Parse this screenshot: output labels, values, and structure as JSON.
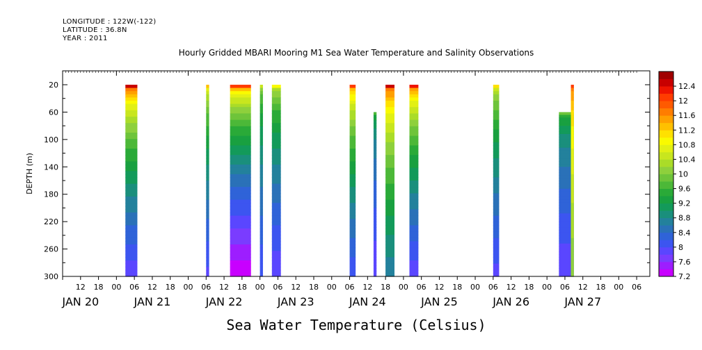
{
  "header": {
    "longitude": "LONGITUDE : 122W(-122)",
    "latitude": "LATITUDE : 36.8N",
    "year": "YEAR : 2011"
  },
  "chart_data": {
    "type": "heatmap",
    "title": "Hourly Gridded MBARI Mooring M1 Sea Water Temperature and Salinity Observations",
    "xlabel": "Sea Water Temperature (Celsius)",
    "ylabel": "DEPTH (m)",
    "x_range_hours": [
      0,
      192
    ],
    "ylim": [
      300,
      10
    ],
    "y_ticks": [
      20,
      60,
      100,
      140,
      180,
      220,
      260,
      300
    ],
    "x_hour_ticks": [
      {
        "h": 12,
        "label": "12"
      },
      {
        "h": 18,
        "label": "18"
      },
      {
        "h": 24,
        "label": "00"
      },
      {
        "h": 30,
        "label": "06"
      },
      {
        "h": 36,
        "label": "12"
      },
      {
        "h": 42,
        "label": "18"
      },
      {
        "h": 48,
        "label": "00"
      },
      {
        "h": 54,
        "label": "06"
      },
      {
        "h": 60,
        "label": "12"
      },
      {
        "h": 66,
        "label": "18"
      },
      {
        "h": 72,
        "label": "00"
      },
      {
        "h": 78,
        "label": "06"
      },
      {
        "h": 84,
        "label": "12"
      },
      {
        "h": 90,
        "label": "18"
      },
      {
        "h": 96,
        "label": "00"
      },
      {
        "h": 102,
        "label": "06"
      },
      {
        "h": 108,
        "label": "12"
      },
      {
        "h": 114,
        "label": "18"
      },
      {
        "h": 120,
        "label": "00"
      },
      {
        "h": 126,
        "label": "06"
      },
      {
        "h": 132,
        "label": "12"
      },
      {
        "h": 138,
        "label": "18"
      },
      {
        "h": 144,
        "label": "00"
      },
      {
        "h": 150,
        "label": "06"
      },
      {
        "h": 156,
        "label": "12"
      },
      {
        "h": 162,
        "label": "18"
      },
      {
        "h": 168,
        "label": "00"
      },
      {
        "h": 174,
        "label": "06"
      },
      {
        "h": 180,
        "label": "12"
      },
      {
        "h": 186,
        "label": "18"
      },
      {
        "h": 192,
        "label": "00"
      },
      {
        "h": 198,
        "label": "06"
      }
    ],
    "x_day_labels": [
      {
        "h": 12,
        "label": "JAN 20"
      },
      {
        "h": 36,
        "label": "JAN 21"
      },
      {
        "h": 60,
        "label": "JAN 22"
      },
      {
        "h": 84,
        "label": "JAN 23"
      },
      {
        "h": 108,
        "label": "JAN 24"
      },
      {
        "h": 132,
        "label": "JAN 25"
      },
      {
        "h": 156,
        "label": "JAN 26"
      },
      {
        "h": 180,
        "label": "JAN 27"
      }
    ],
    "columns": [
      {
        "x0": 27,
        "x1": 31,
        "top_depth": 20,
        "surface_temp": 12.4,
        "bottom_temp": 7.8
      },
      {
        "x0": 54,
        "x1": 55,
        "top_depth": 20,
        "surface_temp": 11.2,
        "bottom_temp": 7.9
      },
      {
        "x0": 62,
        "x1": 69,
        "top_depth": 20,
        "surface_temp": 12.0,
        "bottom_temp": 7.2
      },
      {
        "x0": 72,
        "x1": 73,
        "top_depth": 20,
        "surface_temp": 10.4,
        "bottom_temp": 8.0
      },
      {
        "x0": 76,
        "x1": 79,
        "top_depth": 20,
        "surface_temp": 10.8,
        "bottom_temp": 7.8
      },
      {
        "x0": 102,
        "x1": 104,
        "top_depth": 20,
        "surface_temp": 12.0,
        "bottom_temp": 8.0
      },
      {
        "x0": 110,
        "x1": 111,
        "top_depth": 60,
        "surface_temp": 9.6,
        "bottom_temp": 7.8
      },
      {
        "x0": 114,
        "x1": 117,
        "top_depth": 20,
        "surface_temp": 12.4,
        "bottom_temp": 8.6
      },
      {
        "x0": 122,
        "x1": 125,
        "top_depth": 20,
        "surface_temp": 12.2,
        "bottom_temp": 7.8
      },
      {
        "x0": 150,
        "x1": 152,
        "top_depth": 20,
        "surface_temp": 11.0,
        "bottom_temp": 7.9
      },
      {
        "x0": 172,
        "x1": 177,
        "top_depth": 60,
        "surface_temp": 9.8,
        "bottom_temp": 7.8
      },
      {
        "x0": 176,
        "x1": 177,
        "top_depth": 20,
        "surface_temp": 12.0,
        "bottom_temp": 10.0
      }
    ],
    "colorbar": {
      "levels": [
        7.2,
        7.4,
        7.6,
        7.8,
        8.0,
        8.2,
        8.4,
        8.6,
        8.8,
        9.0,
        9.2,
        9.4,
        9.6,
        9.8,
        10.0,
        10.2,
        10.4,
        10.6,
        10.8,
        11.0,
        11.2,
        11.4,
        11.6,
        11.8,
        12.0,
        12.2,
        12.4,
        12.6
      ],
      "colors": [
        "#c800ff",
        "#9d1eff",
        "#7a3cff",
        "#5a46ff",
        "#3c55f0",
        "#2f63d8",
        "#2a71b8",
        "#23819c",
        "#1a8f7c",
        "#139a5a",
        "#19a040",
        "#2aaa38",
        "#4cb838",
        "#6ec43a",
        "#8ed03c",
        "#aadc28",
        "#c8e61e",
        "#e2f014",
        "#fafa00",
        "#ffe100",
        "#ffc000",
        "#ffa000",
        "#ff7d00",
        "#ff5a00",
        "#ff3c00",
        "#ee1400",
        "#c80000",
        "#a00000"
      ],
      "labels": [
        "7.2",
        "7.6",
        "8",
        "8.4",
        "8.8",
        "9.2",
        "9.6",
        "10",
        "10.4",
        "10.8",
        "11.2",
        "11.6",
        "12",
        "12.4"
      ]
    }
  }
}
